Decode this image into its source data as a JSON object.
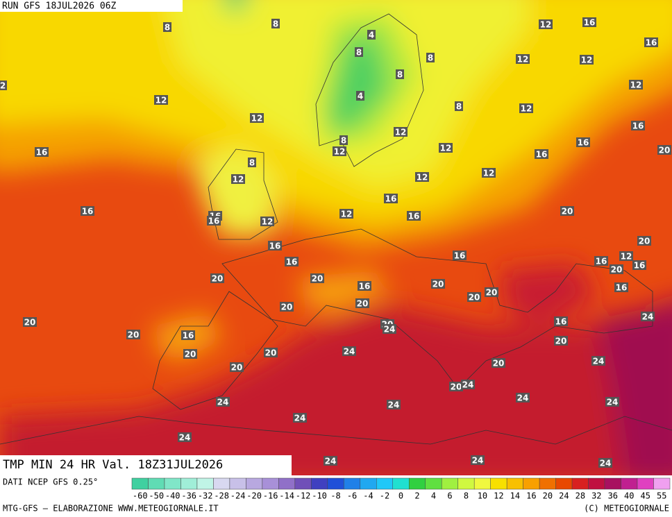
{
  "header": {
    "run": "RUN GFS 18JUL2026 06Z"
  },
  "map": {
    "labels": [
      8,
      8,
      4,
      8,
      8,
      8,
      4,
      8,
      12,
      12,
      12,
      8,
      12,
      12,
      16,
      8,
      12,
      12,
      12,
      16,
      16,
      16,
      12,
      12,
      16,
      16,
      16,
      16,
      16,
      20,
      20,
      16,
      20,
      20,
      20,
      20,
      20,
      20,
      20,
      16,
      20,
      20,
      24,
      24,
      20,
      20,
      20,
      24,
      24,
      20,
      24,
      24,
      24,
      24,
      24,
      24,
      24,
      24,
      24,
      20,
      16,
      24,
      16,
      20,
      12,
      16,
      16,
      20,
      20,
      20,
      16,
      16,
      16,
      12,
      12,
      12,
      12,
      12,
      16,
      16,
      2
    ]
  },
  "footer": {
    "validity": "TMP MIN 24 HR Val. 18Z31JUL2026",
    "source": "DATI NCEP GFS 0.25°",
    "credit": "MTG-GFS — ELABORAZIONE WWW.METEOGIORNALE.IT",
    "copyright": "(C) METEOGIORNALE"
  },
  "legend": {
    "labels": [
      -60,
      -50,
      -40,
      -36,
      -32,
      -28,
      -24,
      -20,
      -16,
      -14,
      -12,
      -10,
      -8,
      -6,
      -4,
      -2,
      0,
      2,
      4,
      6,
      8,
      10,
      12,
      14,
      16,
      20,
      24,
      28,
      32,
      36,
      40,
      45,
      55
    ],
    "colors": [
      "#40d0a0",
      "#60dcb4",
      "#80e6c8",
      "#a0eed8",
      "#c0f4e6",
      "#d8d8f0",
      "#c8c0e8",
      "#b8a8e0",
      "#a890d8",
      "#9070c8",
      "#7050b8",
      "#4040c0",
      "#2050d8",
      "#2080e8",
      "#20a8f0",
      "#20c8f8",
      "#20e0d0",
      "#30d040",
      "#60e040",
      "#a0f040",
      "#d0f840",
      "#f0f840",
      "#f8e000",
      "#f8c000",
      "#f8a000",
      "#f07000",
      "#e84800",
      "#d82020",
      "#c01040",
      "#a81060",
      "#c02090",
      "#e040c0",
      "#f0a0f0"
    ]
  }
}
